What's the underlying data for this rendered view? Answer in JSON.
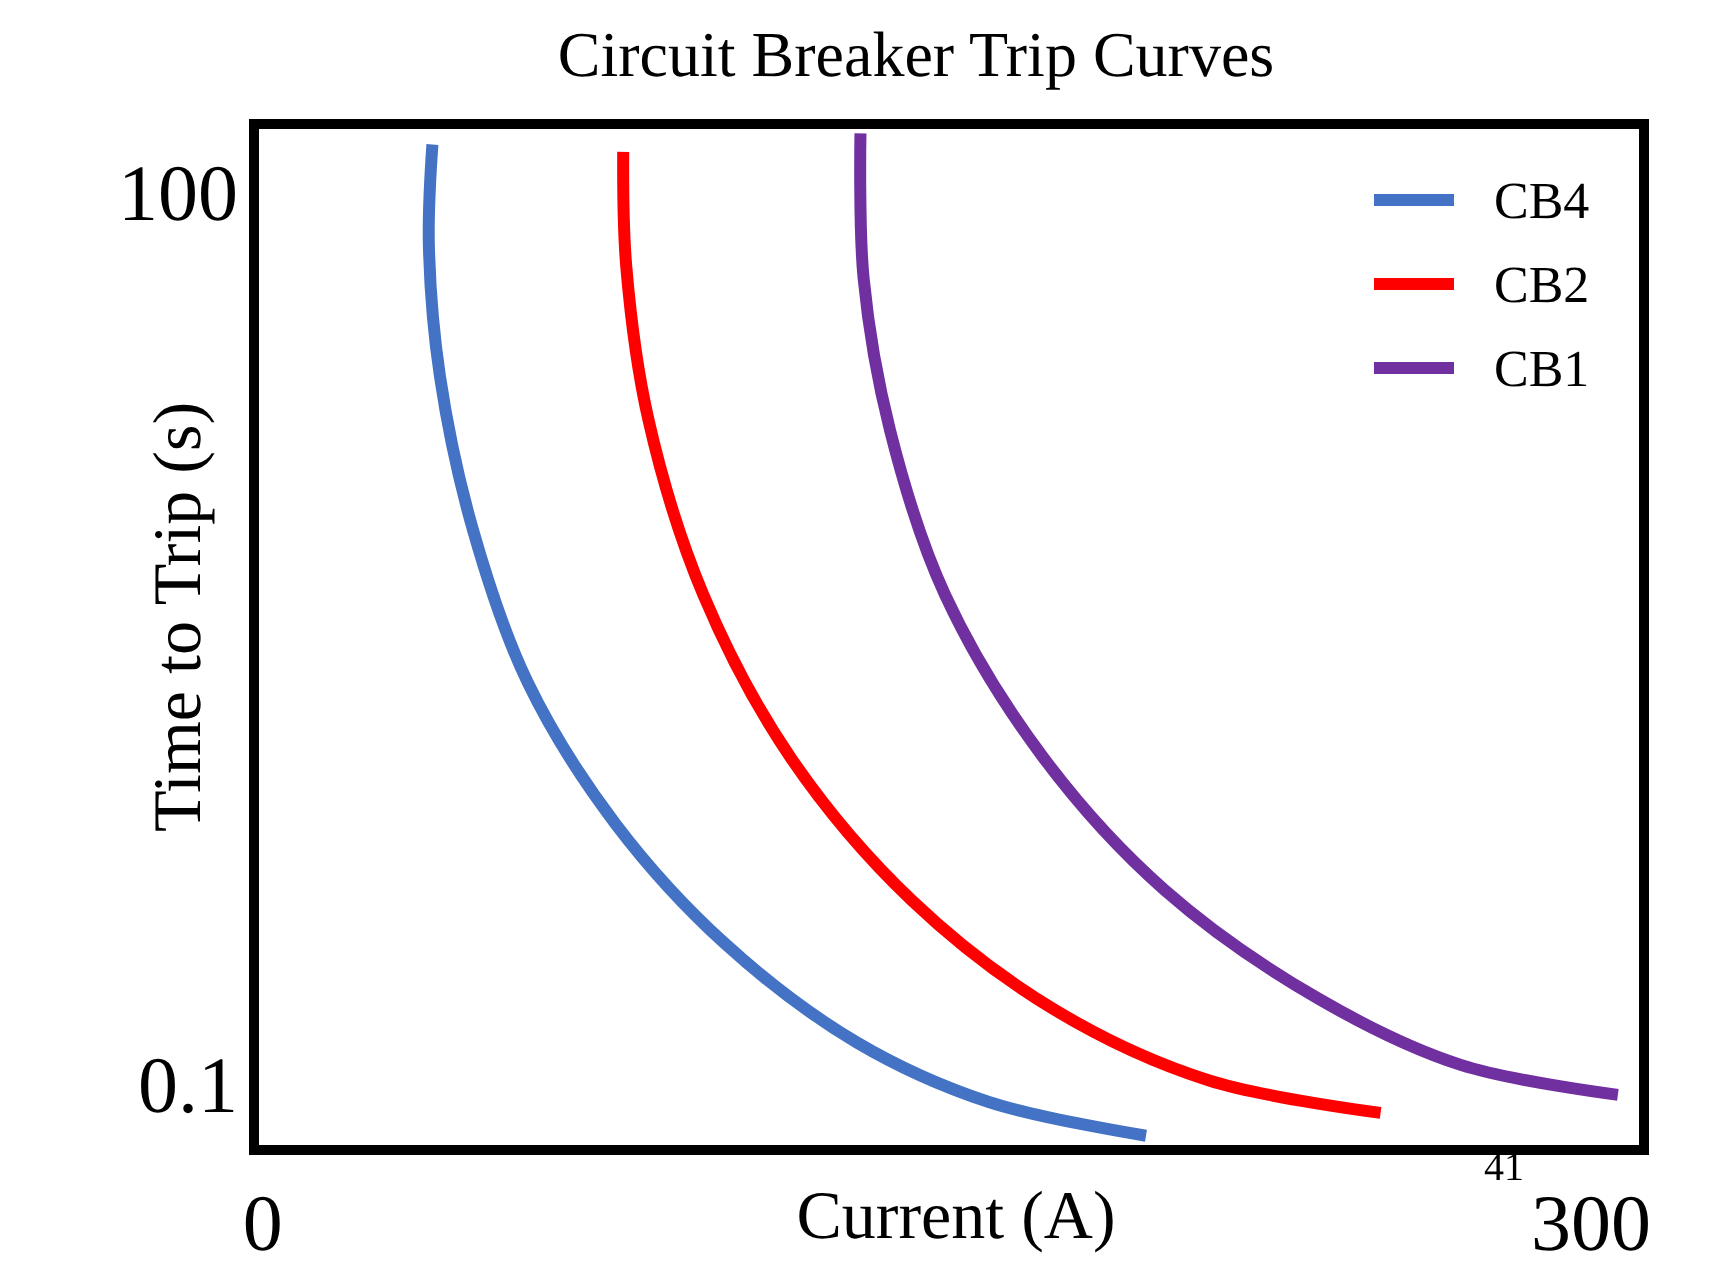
{
  "chart_data": {
    "type": "line",
    "title": "Circuit Breaker Trip Curves",
    "xlabel": "Current (A)",
    "ylabel": "Time to Trip (s)",
    "log": "y",
    "xlim": [
      -2,
      312
    ],
    "xticks": [
      0,
      300
    ],
    "ylim": [
      0.06,
      170
    ],
    "yticks": [
      0.1,
      100
    ],
    "legend": "top right",
    "grid": false,
    "marker": "none",
    "line_style": "solid",
    "annotations": [
      "41"
    ],
    "series": [
      {
        "name": "CB4",
        "color": "#4472c4",
        "x": [
          38.3,
          37.5,
          40.0,
          47.4,
          59.8,
          79.7,
          104.5,
          134.2,
          164.0,
          199.5
        ],
        "values": [
          145,
          66.7,
          24.1,
          7.38,
          2.25,
          0.75,
          0.296,
          0.138,
          0.087,
          0.067
        ]
      },
      {
        "name": "CB2",
        "color": "#ff0000",
        "x": [
          81.4,
          82.1,
          87.1,
          99.5,
          119.3,
          146.6,
          178.8,
          213.6,
          252.5
        ],
        "values": [
          137,
          56.2,
          17.2,
          4.43,
          1.25,
          0.415,
          0.178,
          0.103,
          0.08
        ]
      },
      {
        "name": "CB1",
        "color": "#7030a0",
        "x": [
          135,
          135.7,
          141.7,
          154.1,
          176.4,
          203.7,
          238.4,
          270.6,
          306.1
        ],
        "values": [
          158,
          51.6,
          15.8,
          4.43,
          1.25,
          0.45,
          0.194,
          0.116,
          0.092
        ]
      }
    ]
  }
}
